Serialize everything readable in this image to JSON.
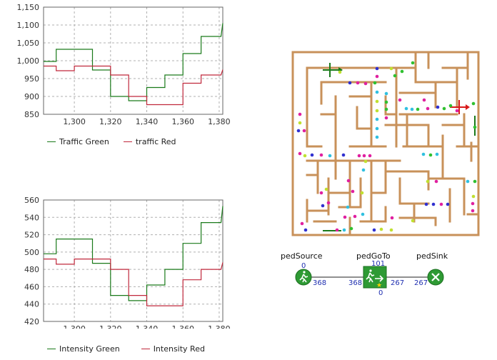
{
  "chart_data": [
    {
      "type": "line",
      "title": "",
      "xlabel": "",
      "ylabel": "",
      "xlim": [
        1283,
        1382
      ],
      "ylim": [
        850,
        1150
      ],
      "xticks": [
        "1,300",
        "1,320",
        "1,340",
        "1,360",
        "1,380"
      ],
      "xtick_values": [
        1300,
        1320,
        1340,
        1360,
        1380
      ],
      "yticks": [
        "850",
        "900",
        "950",
        "1,000",
        "1,050",
        "1,100",
        "1,150"
      ],
      "ytick_values": [
        850,
        900,
        950,
        1000,
        1050,
        1100,
        1150
      ],
      "grid": true,
      "legend_placement": "bottom",
      "series": [
        {
          "name": "Traffic Green",
          "color": "#1a7a1a",
          "x": [
            1283,
            1290,
            1290,
            1310,
            1310,
            1320,
            1320,
            1330,
            1330,
            1340,
            1340,
            1350,
            1350,
            1360,
            1360,
            1370,
            1370,
            1381,
            1382
          ],
          "y": [
            998,
            998,
            1032,
            1032,
            974,
            974,
            900,
            900,
            888,
            888,
            925,
            925,
            960,
            960,
            1020,
            1020,
            1068,
            1068,
            1105
          ]
        },
        {
          "name": "traffic Red",
          "color": "#c0283c",
          "x": [
            1283,
            1290,
            1290,
            1300,
            1300,
            1320,
            1320,
            1330,
            1330,
            1340,
            1340,
            1360,
            1360,
            1370,
            1370,
            1381,
            1382
          ],
          "y": [
            985,
            985,
            972,
            972,
            985,
            985,
            960,
            960,
            900,
            900,
            877,
            877,
            937,
            937,
            960,
            960,
            975
          ]
        }
      ]
    },
    {
      "type": "line",
      "title": "",
      "xlabel": "",
      "ylabel": "",
      "xlim": [
        1283,
        1382
      ],
      "ylim": [
        420,
        560
      ],
      "xticks": [
        "1,300",
        "1,320",
        "1,340",
        "1,360",
        "1,380"
      ],
      "xtick_values": [
        1300,
        1320,
        1340,
        1360,
        1380
      ],
      "yticks": [
        "420",
        "440",
        "460",
        "480",
        "500",
        "520",
        "540",
        "560"
      ],
      "ytick_values": [
        420,
        440,
        460,
        480,
        500,
        520,
        540,
        560
      ],
      "grid": true,
      "legend_placement": "bottom",
      "series": [
        {
          "name": "Intensity Green",
          "color": "#1a7a1a",
          "x": [
            1283,
            1290,
            1290,
            1310,
            1310,
            1320,
            1320,
            1330,
            1330,
            1340,
            1340,
            1350,
            1350,
            1360,
            1360,
            1370,
            1370,
            1381,
            1382
          ],
          "y": [
            498,
            498,
            515,
            515,
            487,
            487,
            450,
            450,
            444,
            444,
            462,
            462,
            480,
            480,
            510,
            510,
            534,
            534,
            553
          ]
        },
        {
          "name": "Intensity Red",
          "color": "#c0283c",
          "x": [
            1283,
            1290,
            1290,
            1300,
            1300,
            1320,
            1320,
            1330,
            1330,
            1340,
            1340,
            1360,
            1360,
            1370,
            1370,
            1381,
            1382
          ],
          "y": [
            492,
            492,
            486,
            486,
            492,
            492,
            480,
            480,
            450,
            450,
            438,
            438,
            468,
            468,
            480,
            480,
            488
          ]
        }
      ]
    }
  ],
  "flowchart": {
    "blocks": [
      {
        "label": "pedSource",
        "top_count": "0",
        "right_count": "368"
      },
      {
        "label": "pedGoTo",
        "top_count": "101",
        "left_count": "368",
        "right_count": "267",
        "bottom_count": "0"
      },
      {
        "label": "pedSink",
        "left_count": "267"
      }
    ]
  },
  "colors": {
    "maze_wall": "#c8915a",
    "grid": "#b0b0b0",
    "block_green": "#2e9a34",
    "link_blue": "#1f2fb0"
  }
}
